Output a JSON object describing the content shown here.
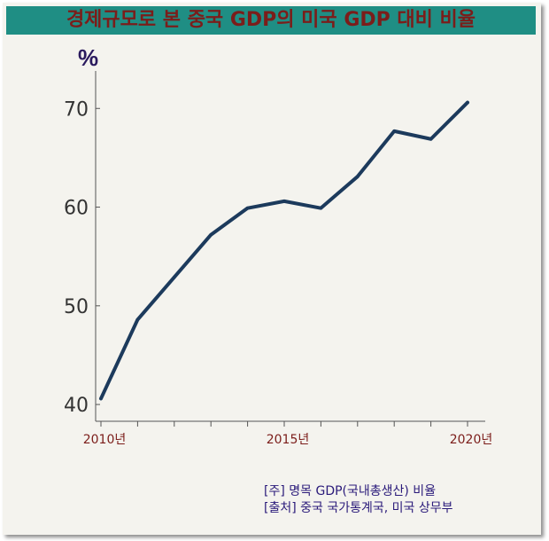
{
  "title": "경제규모로 본 중국 GDP의 미국 GDP 대비 비율",
  "chart_data": {
    "type": "line",
    "unit_label": "%",
    "x": [
      2010,
      2011,
      2012,
      2013,
      2014,
      2015,
      2016,
      2017,
      2018,
      2019,
      2020
    ],
    "series": [
      {
        "values": [
          40.6,
          48.6,
          52.9,
          57.2,
          59.9,
          60.6,
          59.9,
          63.1,
          67.7,
          66.9,
          70.6
        ]
      }
    ],
    "y_ticks": [
      40,
      50,
      60,
      70
    ],
    "x_tick_labels": [
      {
        "x": 2010,
        "label": "2010년"
      },
      {
        "x": 2015,
        "label": "2015년"
      },
      {
        "x": 2020,
        "label": "2020년"
      }
    ],
    "xlim": [
      2010,
      2020
    ],
    "ylim": [
      38.3,
      72.9
    ],
    "grid": false,
    "colors": {
      "line": "#1c3a5c",
      "axis": "#555555",
      "y_tick_text": "#333333",
      "x_tick_text": "#7b1d1a"
    }
  },
  "notes": {
    "note": "[주] 명목 GDP(국내총생산) 비율",
    "source": "[출처] 중국 국가통계국, 미국 상무부"
  }
}
